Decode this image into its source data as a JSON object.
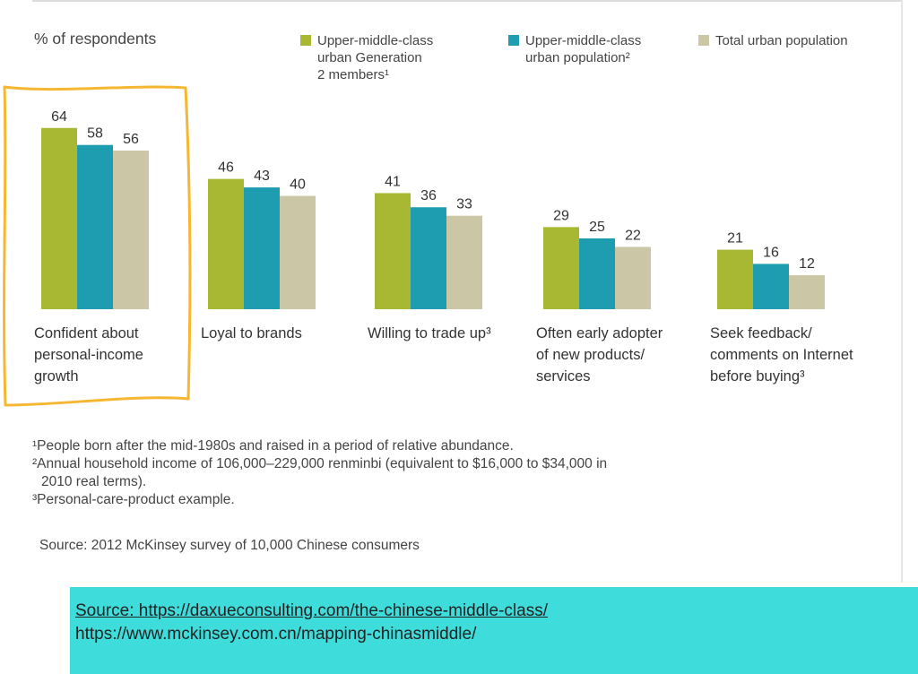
{
  "chart_data": {
    "type": "bar",
    "ylabel": "% of respondents",
    "categories": [
      [
        "Confident about",
        "personal-income",
        "growth"
      ],
      [
        "Loyal to brands"
      ],
      [
        "Willing to trade up³"
      ],
      [
        "Often early adopter",
        "of new products/",
        "services"
      ],
      [
        "Seek feedback/",
        "comments on Internet",
        "before buying³"
      ]
    ],
    "series": [
      {
        "name": "Upper-middle-class urban Generation 2 members¹",
        "legend_lines": [
          "Upper-middle-class",
          "urban Generation",
          "2 members¹"
        ],
        "color": "#a9b833",
        "values": [
          64,
          46,
          41,
          29,
          21
        ]
      },
      {
        "name": "Upper-middle-class urban population²",
        "legend_lines": [
          "Upper-middle-class",
          "urban population²"
        ],
        "color": "#1e9db1",
        "values": [
          58,
          43,
          36,
          25,
          16
        ]
      },
      {
        "name": "Total urban population",
        "legend_lines": [
          "Total urban population"
        ],
        "color": "#cbc6a5",
        "values": [
          56,
          40,
          33,
          22,
          12
        ]
      }
    ],
    "highlight_color": "#f5b731"
  },
  "footnotes": {
    "note1": "¹People born after the mid-1980s and raised in a period of relative abundance.",
    "note2a": "²Annual household income of 106,000–229,000 renminbi (equivalent to $16,000 to $34,000 in",
    "note2b": "2010 real terms).",
    "note3": "³Personal-care-product example.",
    "source": "Source: 2012 McKinsey survey of 10,000 Chinese consumers"
  },
  "source_box": {
    "line1": "Source: https://daxueconsulting.com/the-chinese-middle-class/",
    "line2": "https://www.mckinsey.com.cn/mapping-chinasmiddle/",
    "color": "#3edddb"
  }
}
